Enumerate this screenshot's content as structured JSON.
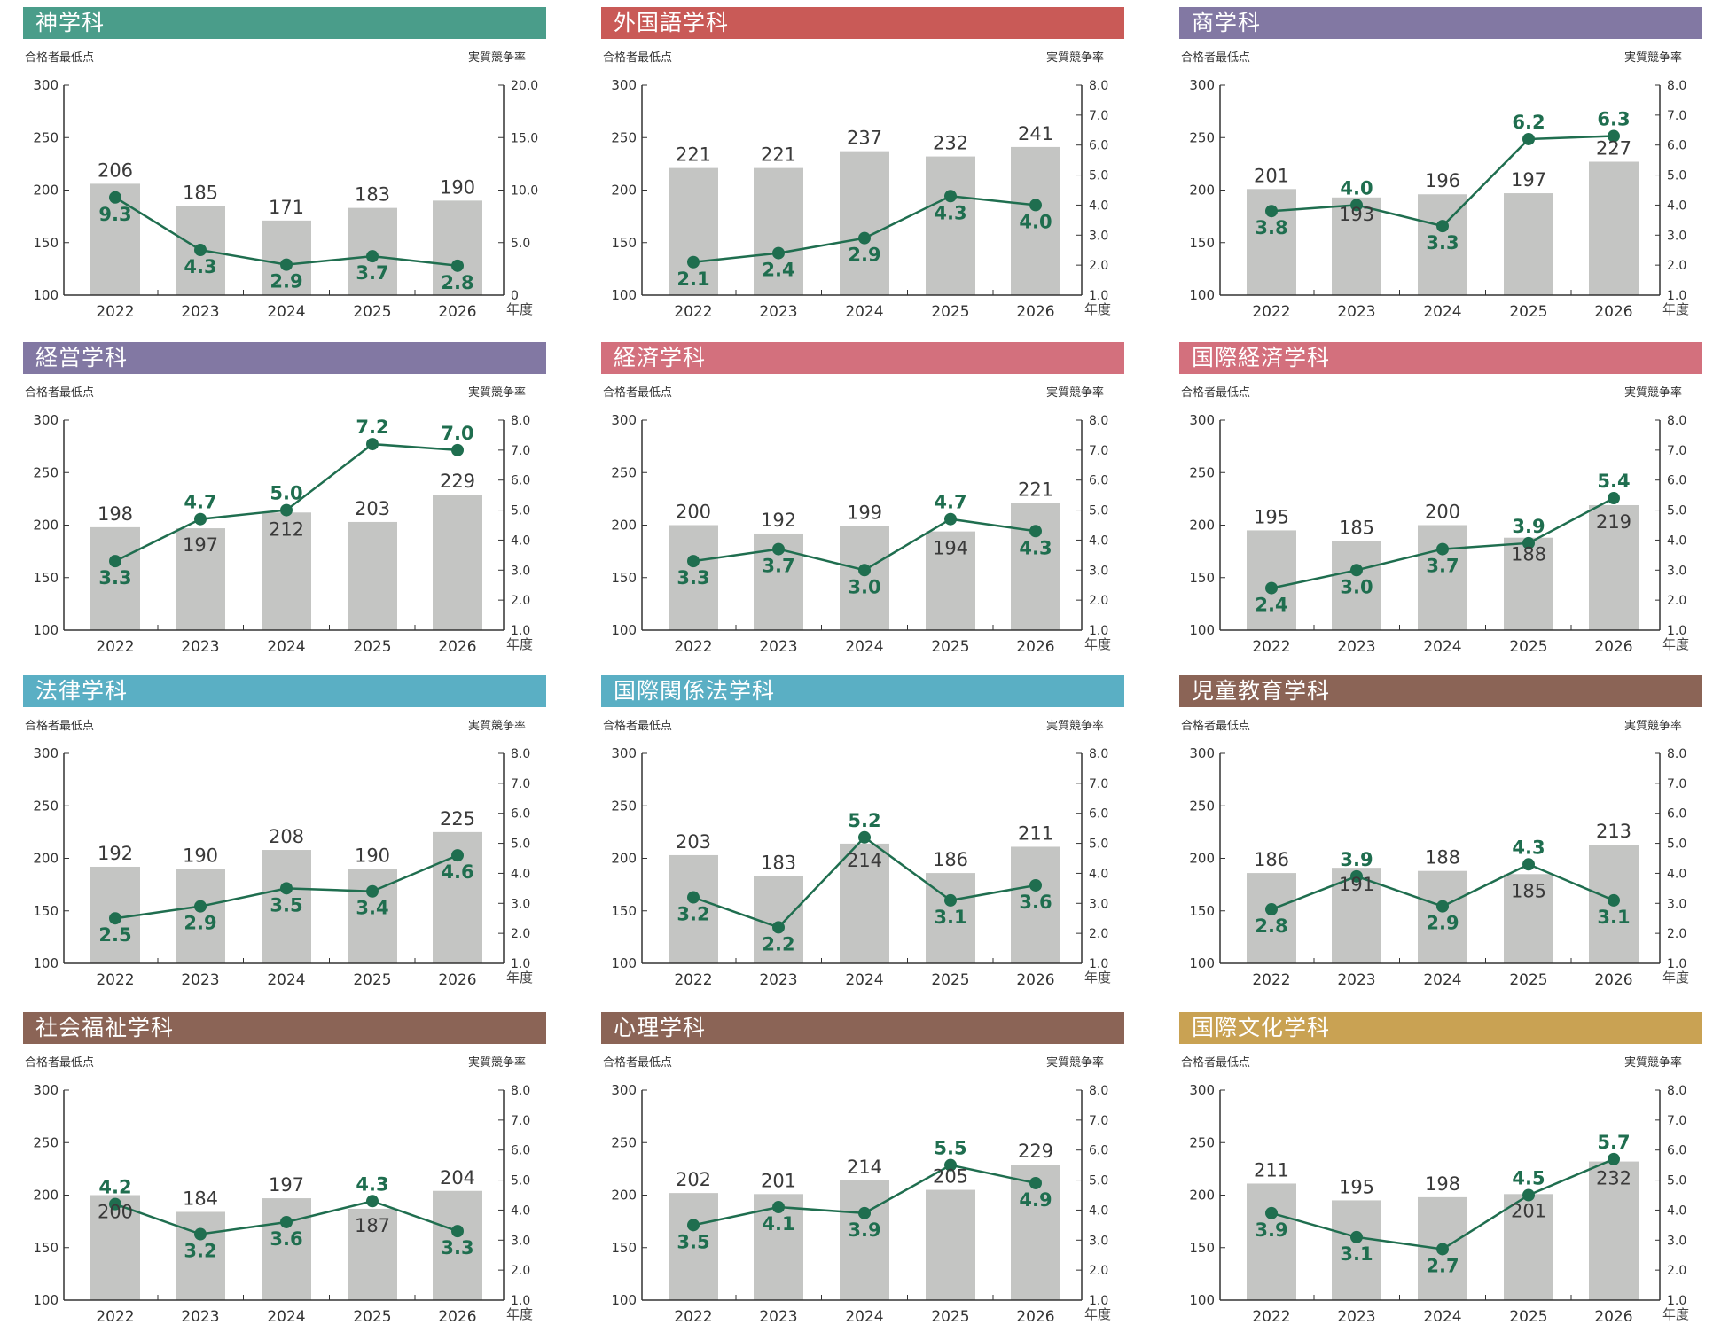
{
  "labels": {
    "left_axis": "合格者最低点",
    "right_axis": "実質競争率",
    "x_unit": "年度"
  },
  "colors": {
    "bar": "#c4c5c3",
    "line": "#1f6e4f",
    "axis": "#333333"
  },
  "chart_data": [
    {
      "type": "bar",
      "title": "神学科",
      "banner_color": "#4a9d8a",
      "categories": [
        "2022",
        "2023",
        "2024",
        "2025",
        "2026"
      ],
      "series": [
        {
          "axis": "left",
          "values": [
            206,
            185,
            171,
            183,
            190
          ]
        },
        {
          "axis": "right",
          "type": "line",
          "values": [
            9.3,
            4.3,
            2.9,
            3.7,
            2.8
          ]
        }
      ],
      "ylim": [
        100,
        300
      ],
      "yticks": [
        100,
        150,
        200,
        250,
        300
      ],
      "y2lim": [
        0,
        20
      ],
      "y2ticks": [
        "0",
        "5.0",
        "10.0",
        "15.0",
        "20.0"
      ],
      "ylabel": "合格者最低点",
      "y2label": "実質競争率",
      "xlabel": "年度"
    },
    {
      "type": "bar",
      "title": "外国語学科",
      "banner_color": "#c95a57",
      "categories": [
        "2022",
        "2023",
        "2024",
        "2025",
        "2026"
      ],
      "series": [
        {
          "axis": "left",
          "values": [
            221,
            221,
            237,
            232,
            241
          ]
        },
        {
          "axis": "right",
          "type": "line",
          "values": [
            2.1,
            2.4,
            2.9,
            4.3,
            4.0
          ]
        }
      ],
      "ylim": [
        100,
        300
      ],
      "yticks": [
        100,
        150,
        200,
        250,
        300
      ],
      "y2lim": [
        1,
        8
      ],
      "y2ticks": [
        "1.0",
        "2.0",
        "3.0",
        "4.0",
        "5.0",
        "6.0",
        "7.0",
        "8.0"
      ],
      "ylabel": "合格者最低点",
      "y2label": "実質競争率",
      "xlabel": "年度"
    },
    {
      "type": "bar",
      "title": "商学科",
      "banner_color": "#8278a3",
      "categories": [
        "2022",
        "2023",
        "2024",
        "2025",
        "2026"
      ],
      "series": [
        {
          "axis": "left",
          "values": [
            201,
            193,
            196,
            197,
            227
          ]
        },
        {
          "axis": "right",
          "type": "line",
          "values": [
            3.8,
            4.0,
            3.3,
            6.2,
            6.3
          ]
        }
      ],
      "ylim": [
        100,
        300
      ],
      "yticks": [
        100,
        150,
        200,
        250,
        300
      ],
      "y2lim": [
        1,
        8
      ],
      "y2ticks": [
        "1.0",
        "2.0",
        "3.0",
        "4.0",
        "5.0",
        "6.0",
        "7.0",
        "8.0"
      ],
      "ylabel": "合格者最低点",
      "y2label": "実質競争率",
      "xlabel": "年度"
    },
    {
      "type": "bar",
      "title": "経営学科",
      "banner_color": "#8278a3",
      "categories": [
        "2022",
        "2023",
        "2024",
        "2025",
        "2026"
      ],
      "series": [
        {
          "axis": "left",
          "values": [
            198,
            197,
            212,
            203,
            229
          ]
        },
        {
          "axis": "right",
          "type": "line",
          "values": [
            3.3,
            4.7,
            5.0,
            7.2,
            7.0
          ]
        }
      ],
      "ylim": [
        100,
        300
      ],
      "yticks": [
        100,
        150,
        200,
        250,
        300
      ],
      "y2lim": [
        1,
        8
      ],
      "y2ticks": [
        "1.0",
        "2.0",
        "3.0",
        "4.0",
        "5.0",
        "6.0",
        "7.0",
        "8.0"
      ],
      "ylabel": "合格者最低点",
      "y2label": "実質競争率",
      "xlabel": "年度"
    },
    {
      "type": "bar",
      "title": "経済学科",
      "banner_color": "#d3707d",
      "categories": [
        "2022",
        "2023",
        "2024",
        "2025",
        "2026"
      ],
      "series": [
        {
          "axis": "left",
          "values": [
            200,
            192,
            199,
            194,
            221
          ]
        },
        {
          "axis": "right",
          "type": "line",
          "values": [
            3.3,
            3.7,
            3.0,
            4.7,
            4.3
          ]
        }
      ],
      "ylim": [
        100,
        300
      ],
      "yticks": [
        100,
        150,
        200,
        250,
        300
      ],
      "y2lim": [
        1,
        8
      ],
      "y2ticks": [
        "1.0",
        "2.0",
        "3.0",
        "4.0",
        "5.0",
        "6.0",
        "7.0",
        "8.0"
      ],
      "ylabel": "合格者最低点",
      "y2label": "実質競争率",
      "xlabel": "年度"
    },
    {
      "type": "bar",
      "title": "国際経済学科",
      "banner_color": "#d3707d",
      "categories": [
        "2022",
        "2023",
        "2024",
        "2025",
        "2026"
      ],
      "series": [
        {
          "axis": "left",
          "values": [
            195,
            185,
            200,
            188,
            219
          ]
        },
        {
          "axis": "right",
          "type": "line",
          "values": [
            2.4,
            3.0,
            3.7,
            3.9,
            5.4
          ]
        }
      ],
      "ylim": [
        100,
        300
      ],
      "yticks": [
        100,
        150,
        200,
        250,
        300
      ],
      "y2lim": [
        1,
        8
      ],
      "y2ticks": [
        "1.0",
        "2.0",
        "3.0",
        "4.0",
        "5.0",
        "6.0",
        "7.0",
        "8.0"
      ],
      "ylabel": "合格者最低点",
      "y2label": "実質競争率",
      "xlabel": "年度"
    },
    {
      "type": "bar",
      "title": "法律学科",
      "banner_color": "#5aafc4",
      "categories": [
        "2022",
        "2023",
        "2024",
        "2025",
        "2026"
      ],
      "series": [
        {
          "axis": "left",
          "values": [
            192,
            190,
            208,
            190,
            225
          ]
        },
        {
          "axis": "right",
          "type": "line",
          "values": [
            2.5,
            2.9,
            3.5,
            3.4,
            4.6
          ]
        }
      ],
      "ylim": [
        100,
        300
      ],
      "yticks": [
        100,
        150,
        200,
        250,
        300
      ],
      "y2lim": [
        1,
        8
      ],
      "y2ticks": [
        "1.0",
        "2.0",
        "3.0",
        "4.0",
        "5.0",
        "6.0",
        "7.0",
        "8.0"
      ],
      "ylabel": "合格者最低点",
      "y2label": "実質競争率",
      "xlabel": "年度"
    },
    {
      "type": "bar",
      "title": "国際関係法学科",
      "banner_color": "#5aafc4",
      "categories": [
        "2022",
        "2023",
        "2024",
        "2025",
        "2026"
      ],
      "series": [
        {
          "axis": "left",
          "values": [
            203,
            183,
            214,
            186,
            211
          ]
        },
        {
          "axis": "right",
          "type": "line",
          "values": [
            3.2,
            2.2,
            5.2,
            3.1,
            3.6
          ]
        }
      ],
      "ylim": [
        100,
        300
      ],
      "yticks": [
        100,
        150,
        200,
        250,
        300
      ],
      "y2lim": [
        1,
        8
      ],
      "y2ticks": [
        "1.0",
        "2.0",
        "3.0",
        "4.0",
        "5.0",
        "6.0",
        "7.0",
        "8.0"
      ],
      "ylabel": "合格者最低点",
      "y2label": "実質競争率",
      "xlabel": "年度"
    },
    {
      "type": "bar",
      "title": "児童教育学科",
      "banner_color": "#8b6456",
      "categories": [
        "2022",
        "2023",
        "2024",
        "2025",
        "2026"
      ],
      "series": [
        {
          "axis": "left",
          "values": [
            186,
            191,
            188,
            185,
            213
          ]
        },
        {
          "axis": "right",
          "type": "line",
          "values": [
            2.8,
            3.9,
            2.9,
            4.3,
            3.1
          ]
        }
      ],
      "ylim": [
        100,
        300
      ],
      "yticks": [
        100,
        150,
        200,
        250,
        300
      ],
      "y2lim": [
        1,
        8
      ],
      "y2ticks": [
        "1.0",
        "2.0",
        "3.0",
        "4.0",
        "5.0",
        "6.0",
        "7.0",
        "8.0"
      ],
      "ylabel": "合格者最低点",
      "y2label": "実質競争率",
      "xlabel": "年度"
    },
    {
      "type": "bar",
      "title": "社会福祉学科",
      "banner_color": "#8b6456",
      "categories": [
        "2022",
        "2023",
        "2024",
        "2025",
        "2026"
      ],
      "series": [
        {
          "axis": "left",
          "values": [
            200,
            184,
            197,
            187,
            204
          ]
        },
        {
          "axis": "right",
          "type": "line",
          "values": [
            4.2,
            3.2,
            3.6,
            4.3,
            3.3
          ]
        }
      ],
      "ylim": [
        100,
        300
      ],
      "yticks": [
        100,
        150,
        200,
        250,
        300
      ],
      "y2lim": [
        1,
        8
      ],
      "y2ticks": [
        "1.0",
        "2.0",
        "3.0",
        "4.0",
        "5.0",
        "6.0",
        "7.0",
        "8.0"
      ],
      "ylabel": "合格者最低点",
      "y2label": "実質競争率",
      "xlabel": "年度"
    },
    {
      "type": "bar",
      "title": "心理学科",
      "banner_color": "#8b6456",
      "categories": [
        "2022",
        "2023",
        "2024",
        "2025",
        "2026"
      ],
      "series": [
        {
          "axis": "left",
          "values": [
            202,
            201,
            214,
            205,
            229
          ]
        },
        {
          "axis": "right",
          "type": "line",
          "values": [
            3.5,
            4.1,
            3.9,
            5.5,
            4.9
          ]
        }
      ],
      "ylim": [
        100,
        300
      ],
      "yticks": [
        100,
        150,
        200,
        250,
        300
      ],
      "y2lim": [
        1,
        8
      ],
      "y2ticks": [
        "1.0",
        "2.0",
        "3.0",
        "4.0",
        "5.0",
        "6.0",
        "7.0",
        "8.0"
      ],
      "ylabel": "合格者最低点",
      "y2label": "実質競争率",
      "xlabel": "年度"
    },
    {
      "type": "bar",
      "title": "国際文化学科",
      "banner_color": "#c9a253",
      "categories": [
        "2022",
        "2023",
        "2024",
        "2025",
        "2026"
      ],
      "series": [
        {
          "axis": "left",
          "values": [
            211,
            195,
            198,
            201,
            232
          ]
        },
        {
          "axis": "right",
          "type": "line",
          "values": [
            3.9,
            3.1,
            2.7,
            4.5,
            5.7
          ]
        }
      ],
      "ylim": [
        100,
        300
      ],
      "yticks": [
        100,
        150,
        200,
        250,
        300
      ],
      "y2lim": [
        1,
        8
      ],
      "y2ticks": [
        "1.0",
        "2.0",
        "3.0",
        "4.0",
        "5.0",
        "6.0",
        "7.0",
        "8.0"
      ],
      "ylabel": "合格者最低点",
      "y2label": "実質競争率",
      "xlabel": "年度"
    }
  ]
}
